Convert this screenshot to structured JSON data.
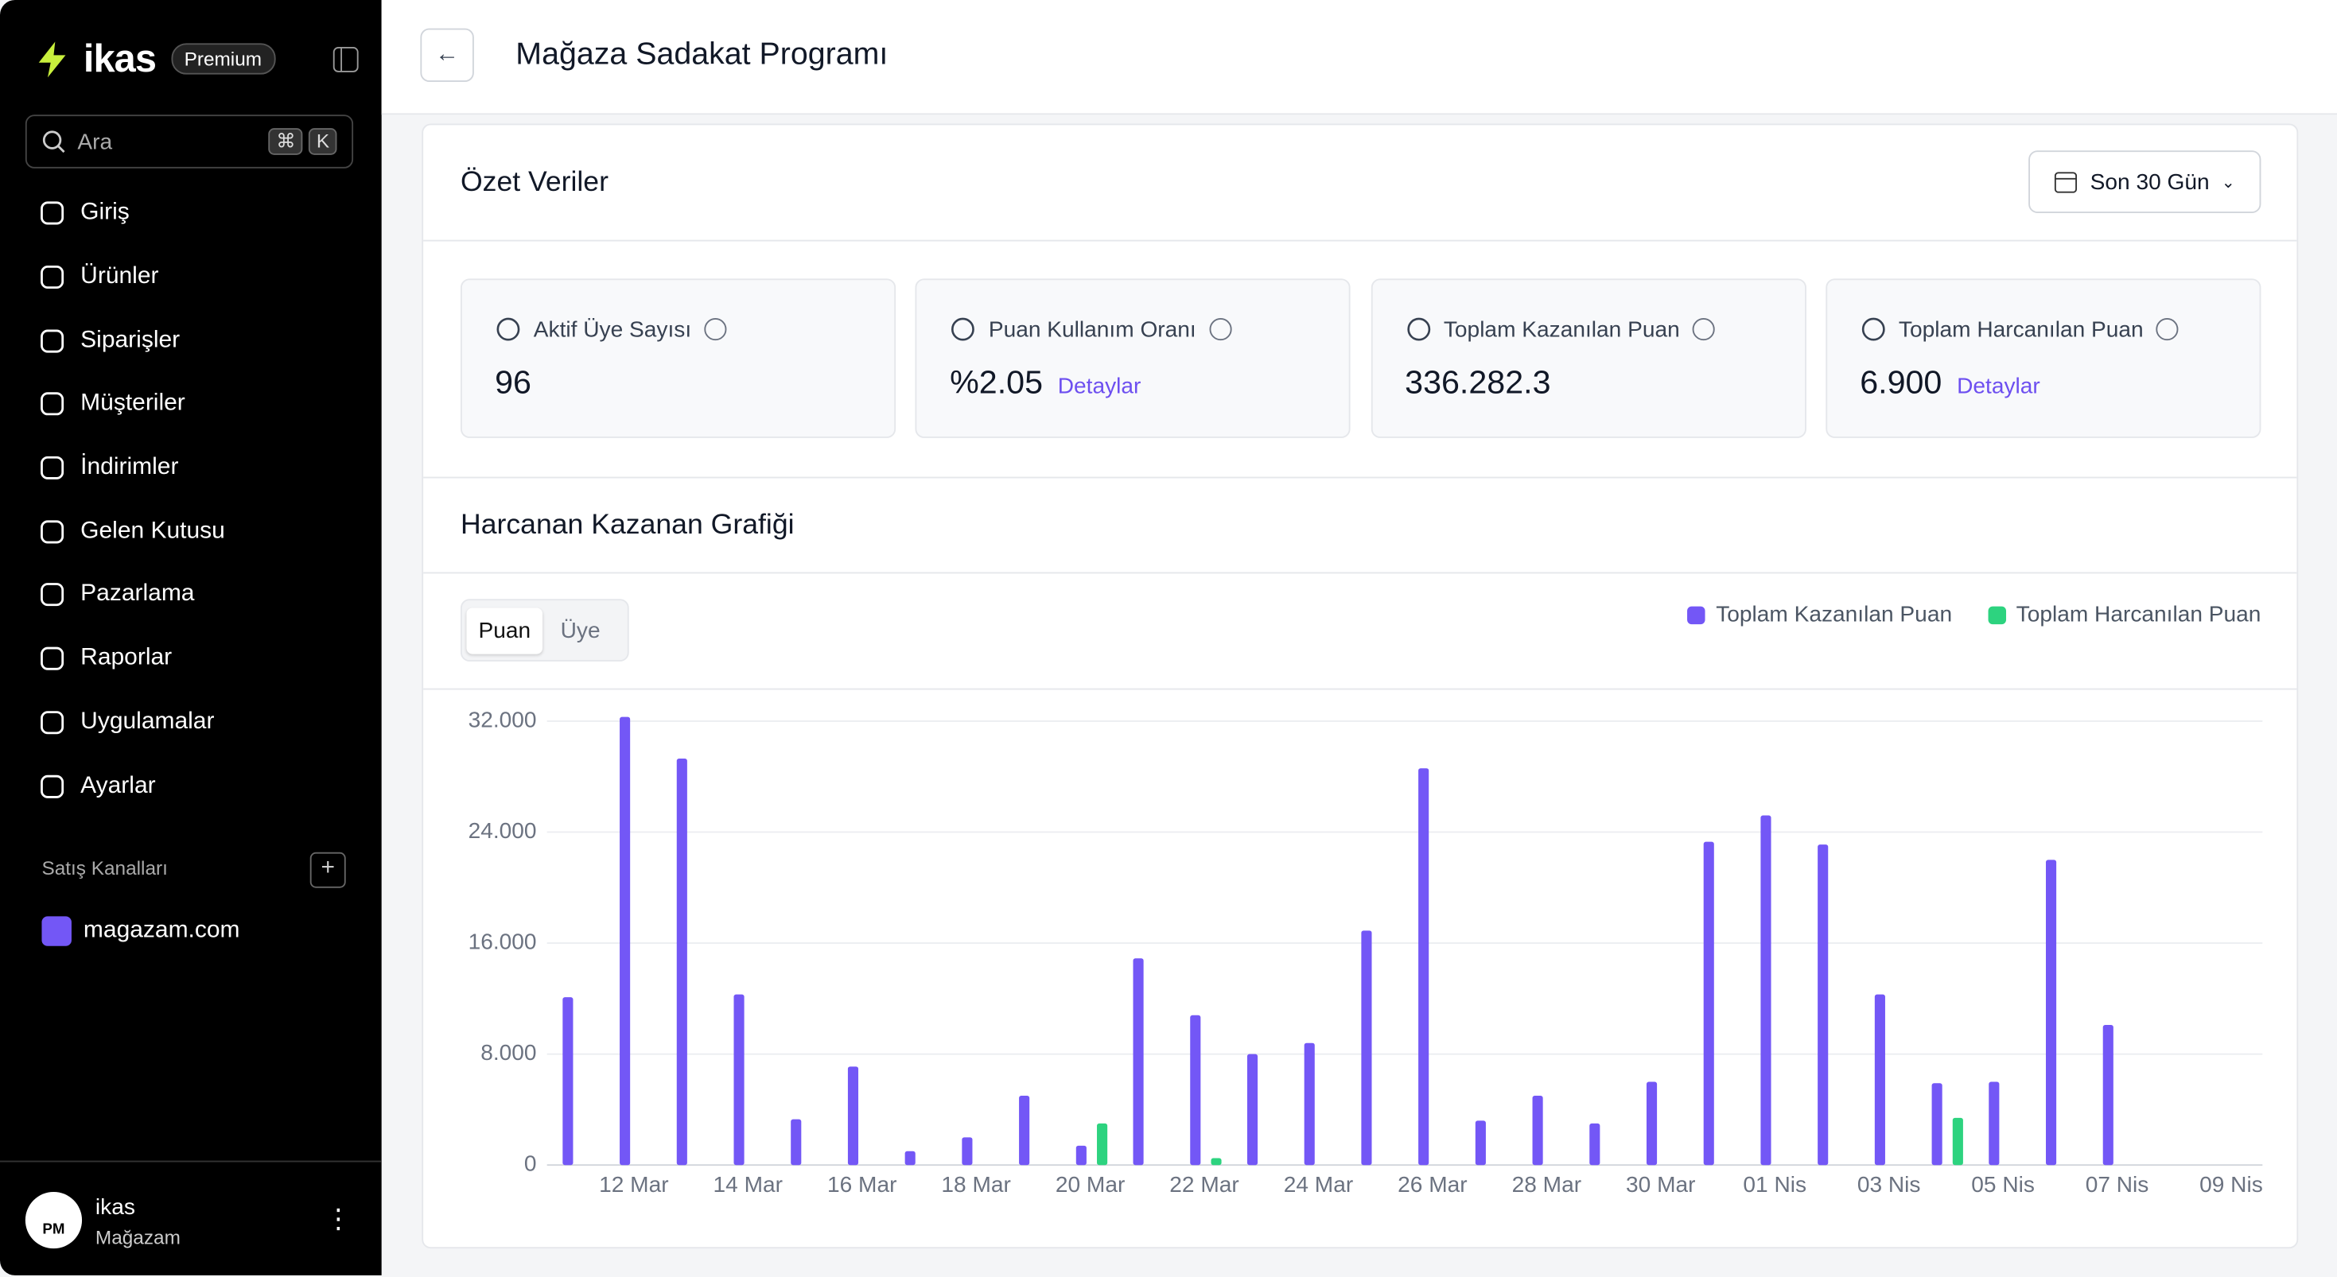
{
  "sidebar": {
    "brand": "ikas",
    "plan": "Premium",
    "search": {
      "placeholder": "Ara",
      "shortcut": [
        "⌘",
        "K"
      ]
    },
    "menu": [
      "Giriş",
      "Ürünler",
      "Siparişler",
      "Müşteriler",
      "İndirimler",
      "Gelen Kutusu",
      "Pazarlama",
      "Raporlar",
      "Uygulamalar",
      "Ayarlar"
    ],
    "channels_title": "Satış Kanalları",
    "channels": [
      "magazam.com"
    ],
    "user": {
      "initials": "PM",
      "name": "ikas",
      "store": "Mağazam"
    }
  },
  "header": {
    "title": "Mağaza Sadakat Programı"
  },
  "summary": {
    "title": "Özet Veriler",
    "date_range": "Son 30 Gün",
    "cards": [
      {
        "label": "Aktif Üye Sayısı",
        "value": "96"
      },
      {
        "label": "Puan Kullanım Oranı",
        "value": "%2.05",
        "link": "Detaylar"
      },
      {
        "label": "Toplam Kazanılan Puan",
        "value": "336.282.3"
      },
      {
        "label": "Toplam Harcanılan Puan",
        "value": "6.900",
        "link": "Detaylar"
      }
    ]
  },
  "chart_section": {
    "title": "Harcanan Kazanan Grafiği",
    "tabs": [
      "Puan",
      "Üye"
    ],
    "chart_data": {
      "type": "bar",
      "categories": [
        null,
        "12 Mar",
        null,
        "14 Mar",
        null,
        "16 Mar",
        null,
        "18 Mar",
        null,
        "20 Mar",
        null,
        "22 Mar",
        null,
        "24 Mar",
        null,
        "26 Mar",
        null,
        "28 Mar",
        null,
        "30 Mar",
        null,
        "01 Nis",
        null,
        "03 Nis",
        null,
        "05 Nis",
        null,
        "07 Nis",
        null,
        "09 Nis"
      ],
      "series": [
        {
          "name": "Toplam Kazanılan Puan",
          "color": "#7357f6",
          "values": [
            12100,
            32300,
            29300,
            12300,
            3300,
            7100,
            1000,
            2000,
            5000,
            1400,
            14900,
            10800,
            8000,
            8800,
            16900,
            28600,
            3200,
            5000,
            3000,
            6000,
            23300,
            25200,
            23100,
            12300,
            5900,
            6000,
            22000,
            10100,
            null,
            null
          ]
        },
        {
          "name": "Toplam Harcanılan Puan",
          "color": "#2dd37f",
          "values": [
            null,
            null,
            null,
            null,
            null,
            null,
            null,
            null,
            null,
            3000,
            null,
            500,
            null,
            null,
            null,
            null,
            null,
            null,
            null,
            null,
            null,
            null,
            null,
            null,
            3400,
            null,
            null,
            null,
            null,
            null
          ]
        }
      ],
      "ylim": [
        0,
        32000
      ],
      "yticks": [
        0,
        {
          "value": 8000,
          "label": "8.000"
        },
        {
          "value": 16000,
          "label": "16.000"
        },
        {
          "value": 24000,
          "label": "24.000"
        },
        {
          "value": 32000,
          "label": "32.000"
        }
      ],
      "grid": true,
      "legend": "top-right"
    }
  }
}
